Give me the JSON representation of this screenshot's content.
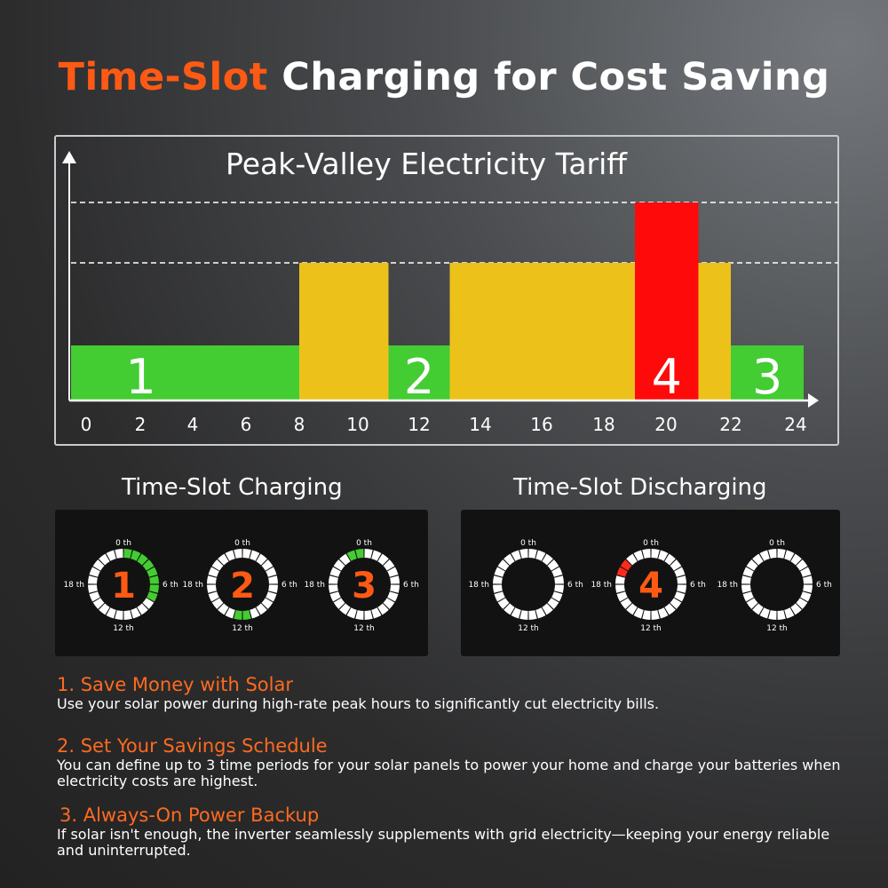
{
  "title": {
    "highlight": "Time-Slot",
    "rest": " Charging for Cost Saving"
  },
  "chart_data": {
    "type": "bar",
    "title": "Peak-Valley Electricity Tariff",
    "xlabel": "",
    "ylabel": "",
    "x_ticks": [
      0,
      2,
      4,
      6,
      8,
      10,
      12,
      14,
      16,
      18,
      20,
      22,
      24
    ],
    "xlim": [
      0,
      24
    ],
    "levels": {
      "valley": 1,
      "flat": 2,
      "peak": 3
    },
    "segments": [
      {
        "start": 0,
        "end": 8,
        "level": 1,
        "color": "#44cc33",
        "label": "1"
      },
      {
        "start": 8,
        "end": 11,
        "level": 2,
        "color": "#ecc21a",
        "label": ""
      },
      {
        "start": 11,
        "end": 13,
        "level": 1,
        "color": "#44cc33",
        "label": "2"
      },
      {
        "start": 13,
        "end": 19,
        "level": 2,
        "color": "#ecc21a",
        "label": ""
      },
      {
        "start": 19,
        "end": 21,
        "level": 3,
        "color": "#ff0a0a",
        "label": "4"
      },
      {
        "start": 21,
        "end": 22,
        "level": 2,
        "color": "#ecc21a",
        "label": ""
      },
      {
        "start": 22,
        "end": 24,
        "level": 1,
        "color": "#44cc33",
        "label": "3"
      }
    ],
    "dashed_reference_levels": [
      2,
      3
    ],
    "grid": false
  },
  "charging": {
    "title": "Time-Slot Charging",
    "dials": [
      {
        "number": "1",
        "active_hours": [
          0,
          1,
          2,
          3,
          4,
          5,
          6,
          7
        ],
        "color": "#44cc33"
      },
      {
        "number": "2",
        "active_hours": [
          11,
          12
        ],
        "color": "#44cc33"
      },
      {
        "number": "3",
        "active_hours": [
          22,
          23
        ],
        "color": "#44cc33"
      }
    ]
  },
  "discharging": {
    "title": "Time-Slot Discharging",
    "dials": [
      {
        "number": "",
        "active_hours": [],
        "color": "#ff2a1a"
      },
      {
        "number": "4",
        "active_hours": [
          19,
          20
        ],
        "color": "#ff2a1a"
      },
      {
        "number": "",
        "active_hours": [],
        "color": "#ff2a1a"
      }
    ]
  },
  "dial_labels": {
    "top": "0 th",
    "right": "6 th",
    "bottom": "12 th",
    "left": "18 th"
  },
  "features": [
    {
      "heading": "1. Save Money with Solar",
      "text": "Use your solar power during high-rate peak hours to significantly cut electricity bills."
    },
    {
      "heading": "2. Set Your Savings Schedule",
      "text": "You can define up to 3 time periods for your solar panels to power your home and charge your batteries when electricity costs are highest."
    },
    {
      "heading": "3. Always-On Power Backup",
      "text": "If solar isn't enough, the inverter seamlessly supplements with grid electricity—keeping your energy reliable and uninterrupted."
    }
  ],
  "colors": {
    "accent": "#ff5a14",
    "valley": "#44cc33",
    "flat": "#ecc21a",
    "peak": "#ff0a0a"
  }
}
